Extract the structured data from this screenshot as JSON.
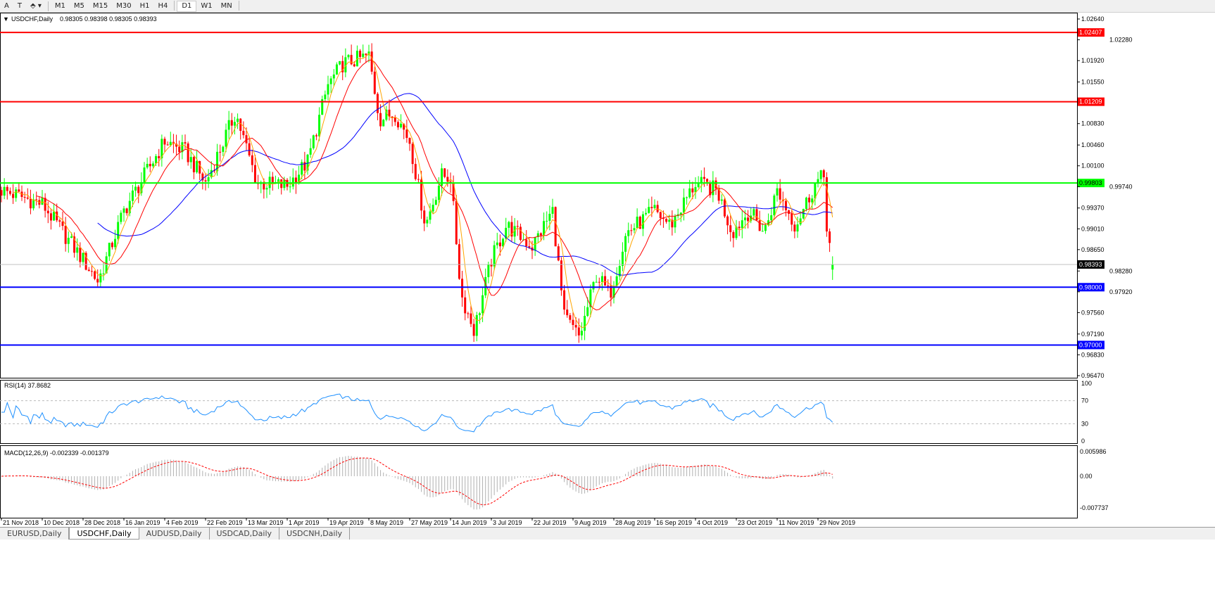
{
  "toolbar": {
    "tools": [
      "A",
      "T",
      "⬘ ▾"
    ],
    "timeframes": [
      "M1",
      "M5",
      "M15",
      "M30",
      "H1",
      "H4",
      "D1",
      "W1",
      "MN"
    ],
    "active": "D1"
  },
  "header": {
    "symbol": "USDCHF,Daily",
    "ohlc": "0.98305 0.98398 0.98305 0.98393"
  },
  "price_axis": [
    "1.02640",
    "1.02280",
    "1.01920",
    "1.01550",
    "1.00830",
    "1.00460",
    "1.00100",
    "0.99740",
    "0.99370",
    "0.99010",
    "0.98650",
    "0.98280",
    "0.97920",
    "0.97560",
    "0.97190",
    "0.96830",
    "0.96470"
  ],
  "hlines": [
    {
      "value": 1.02407,
      "label": "1.02407",
      "color": "#ff0000"
    },
    {
      "value": 1.01209,
      "label": "1.01209",
      "color": "#ff0000"
    },
    {
      "value": 0.99803,
      "label": "0.99803",
      "color": "#00ff00"
    },
    {
      "value": 0.98,
      "label": "0.98000",
      "color": "#0000ff"
    },
    {
      "value": 0.97,
      "label": "0.97000",
      "color": "#0000ff"
    }
  ],
  "current_price": {
    "value": 0.98393,
    "label": "0.98393"
  },
  "rsi": {
    "title": "RSI(14) 37.8682",
    "levels": [
      "100",
      "70",
      "30",
      "0"
    ],
    "color": "#1e90ff"
  },
  "macd": {
    "title": "MACD(12,26,9) -0.002339 -0.001379",
    "levels": [
      "0.005986",
      "0.00",
      "-0.007737"
    ]
  },
  "tabs": [
    "EURUSD,Daily",
    "USDCHF,Daily",
    "AUDUSD,Daily",
    "USDCAD,Daily",
    "USDCNH,Daily"
  ],
  "active_tab": "USDCHF,Daily",
  "chart_data": {
    "type": "candlestick",
    "title": "USDCHF,Daily",
    "ylim": [
      0.9647,
      1.0264
    ],
    "x_ticks": [
      "21 Nov 2018",
      "10 Dec 2018",
      "28 Dec 2018",
      "16 Jan 2019",
      "4 Feb 2019",
      "22 Feb 2019",
      "13 Mar 2019",
      "1 Apr 2019",
      "19 Apr 2019",
      "8 May 2019",
      "27 May 2019",
      "14 Jun 2019",
      "3 Jul 2019",
      "22 Jul 2019",
      "9 Aug 2019",
      "28 Aug 2019",
      "16 Sep 2019",
      "4 Oct 2019",
      "23 Oct 2019",
      "11 Nov 2019",
      "29 Nov 2019"
    ],
    "approx_closes": [
      [
        "21 Nov 2018",
        0.9968
      ],
      [
        "10 Dec 2018",
        0.9944
      ],
      [
        "28 Dec 2018",
        0.9847
      ],
      [
        "4 Jan 2019",
        0.981
      ],
      [
        "16 Jan 2019",
        0.9932
      ],
      [
        "4 Feb 2019",
        1.0053
      ],
      [
        "13 Feb 2019",
        1.0035
      ],
      [
        "22 Feb 2019",
        0.998
      ],
      [
        "8 Mar 2019",
        1.0102
      ],
      [
        "18 Mar 2019",
        0.998
      ],
      [
        "1 Apr 2019",
        0.9975
      ],
      [
        "10 Apr 2019",
        1.0017
      ],
      [
        "19 Apr 2019",
        1.015
      ],
      [
        "26 Apr 2019",
        1.0187
      ],
      [
        "8 May 2019",
        1.02
      ],
      [
        "13 May 2019",
        1.009
      ],
      [
        "20 May 2019",
        1.0102
      ],
      [
        "27 May 2019",
        1.0053
      ],
      [
        "3 Jun 2019",
        0.9907
      ],
      [
        "10 Jun 2019",
        0.9993
      ],
      [
        "14 Jun 2019",
        0.999
      ],
      [
        "19 Jun 2019",
        0.9786
      ],
      [
        "25 Jun 2019",
        0.9725
      ],
      [
        "3 Jul 2019",
        0.9847
      ],
      [
        "10 Jul 2019",
        0.9907
      ],
      [
        "22 Jul 2019",
        0.9871
      ],
      [
        "31 Jul 2019",
        0.9932
      ],
      [
        "5 Aug 2019",
        0.9749
      ],
      [
        "12 Aug 2019",
        0.9713
      ],
      [
        "20 Aug 2019",
        0.9823
      ],
      [
        "26 Aug 2019",
        0.9786
      ],
      [
        "3 Sep 2019",
        0.9895
      ],
      [
        "16 Sep 2019",
        0.9932
      ],
      [
        "23 Sep 2019",
        0.9907
      ],
      [
        "4 Oct 2019",
        0.998
      ],
      [
        "14 Oct 2019",
        0.9968
      ],
      [
        "21 Oct 2019",
        0.9895
      ],
      [
        "29 Oct 2019",
        0.9932
      ],
      [
        "5 Nov 2019",
        0.9895
      ],
      [
        "11 Nov 2019",
        0.9968
      ],
      [
        "19 Nov 2019",
        0.9907
      ],
      [
        "28 Nov 2019",
        0.998
      ],
      [
        "2 Dec 2019",
        0.9993
      ],
      [
        "3 Dec 2019",
        0.9895
      ],
      [
        "5 Dec 2019",
        0.9859
      ],
      [
        "6 Dec 2019",
        0.98393
      ]
    ],
    "series": [
      {
        "color": "#ffa500"
      },
      {
        "color": "#ff0000"
      },
      {
        "color": "#0000ff"
      }
    ],
    "colors": {
      "bull": "#00ff00",
      "bear": "#ff0000"
    }
  }
}
